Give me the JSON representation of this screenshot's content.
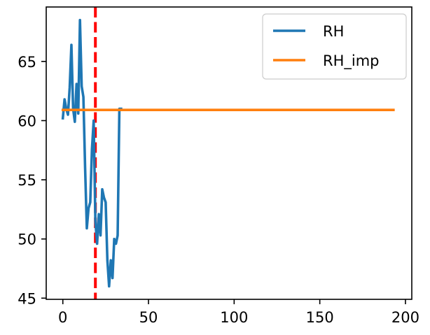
{
  "chart_data": {
    "type": "line",
    "xlim": [
      -9.7,
      203.7
    ],
    "ylim": [
      44.9,
      69.6
    ],
    "xticks": [
      0,
      50,
      100,
      150,
      200
    ],
    "yticks": [
      45,
      50,
      55,
      60,
      65
    ],
    "grid": false,
    "legend_position": "top-right",
    "vline": {
      "x": 19,
      "color": "#ff0000",
      "style": "dashed"
    },
    "series": [
      {
        "name": "RH",
        "color": "#1f77b4",
        "x": [
          0,
          1,
          2,
          3,
          4,
          5,
          6,
          7,
          8,
          9,
          10,
          11,
          12,
          13,
          14,
          15,
          16,
          17,
          18,
          19,
          20,
          21,
          22,
          23,
          24,
          25,
          26,
          27,
          28,
          29,
          30,
          31,
          32,
          33,
          34
        ],
        "y": [
          60.2,
          61.8,
          61.0,
          60.5,
          62.8,
          66.4,
          61.0,
          59.9,
          63.1,
          60.6,
          68.5,
          62.9,
          62.0,
          56.0,
          50.9,
          52.6,
          53.1,
          57.6,
          60.0,
          51.5,
          49.6,
          52.1,
          50.3,
          54.2,
          53.5,
          53.1,
          48.2,
          46.0,
          48.2,
          46.7,
          50.0,
          49.6,
          50.3,
          61.0,
          61.0
        ]
      },
      {
        "name": "RH_imp",
        "color": "#ff7f0e",
        "x": [
          0,
          193
        ],
        "y": [
          60.9,
          60.9
        ]
      }
    ]
  }
}
